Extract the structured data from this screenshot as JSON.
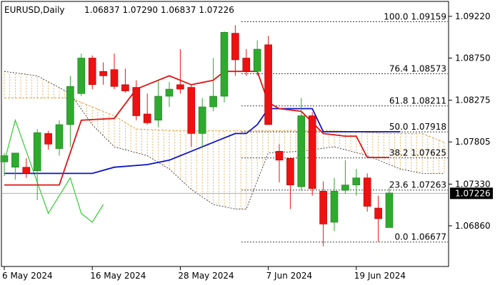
{
  "header": {
    "symbol": "EURUSD,Daily",
    "ohlc": "1.06837 1.07290 1.06837 1.07226"
  },
  "colors": {
    "bull": "#2eaa2e",
    "bear": "#ee1111",
    "kijun": "#0a14c8",
    "tenkan": "#e01414",
    "chikou": "#33cc33",
    "cloud": "#e0a040",
    "cloud_edge": "#202020",
    "fib": "#404040",
    "price_tag_bg": "#000000",
    "price_tag_fg": "#ffffff",
    "current_line": "#b0b0b0"
  },
  "chart_data": {
    "type": "candlestick",
    "title": "EURUSD,Daily",
    "ylim": [
      1.0641,
      1.0938
    ],
    "y_ticks": [
      "1.09220",
      "1.08750",
      "1.08275",
      "1.07805",
      "1.07330",
      "1.06860"
    ],
    "y_tick_values": [
      1.0922,
      1.0875,
      1.08275,
      1.07805,
      1.0733,
      1.0686
    ],
    "x_ticks": [
      "6 May 2024",
      "16 May 2024",
      "28 May 2024",
      "7 Jun 2024",
      "19 Jun 2024"
    ],
    "x_tick_index": [
      0,
      8,
      16,
      24,
      32
    ],
    "current_price": "1.07226",
    "candles": [
      {
        "o": 1.0758,
        "h": 1.0768,
        "l": 1.0742,
        "c": 1.0765
      },
      {
        "o": 1.0752,
        "h": 1.0768,
        "l": 1.0738,
        "c": 1.0768
      },
      {
        "o": 1.0752,
        "h": 1.0762,
        "l": 1.074,
        "c": 1.0745
      },
      {
        "o": 1.0748,
        "h": 1.0795,
        "l": 1.0715,
        "c": 1.0791
      },
      {
        "o": 1.079,
        "h": 1.0793,
        "l": 1.0772,
        "c": 1.0778
      },
      {
        "o": 1.0773,
        "h": 1.0805,
        "l": 1.0765,
        "c": 1.08
      },
      {
        "o": 1.08,
        "h": 1.0855,
        "l": 1.0775,
        "c": 1.0843
      },
      {
        "o": 1.0835,
        "h": 1.088,
        "l": 1.0832,
        "c": 1.0875
      },
      {
        "o": 1.0875,
        "h": 1.0878,
        "l": 1.084,
        "c": 1.0845
      },
      {
        "o": 1.086,
        "h": 1.087,
        "l": 1.0845,
        "c": 1.0855
      },
      {
        "o": 1.0862,
        "h": 1.088,
        "l": 1.084,
        "c": 1.0843
      },
      {
        "o": 1.0845,
        "h": 1.0863,
        "l": 1.0836,
        "c": 1.0838
      },
      {
        "o": 1.0842,
        "h": 1.085,
        "l": 1.0805,
        "c": 1.081
      },
      {
        "o": 1.0812,
        "h": 1.0835,
        "l": 1.08,
        "c": 1.0802
      },
      {
        "o": 1.0805,
        "h": 1.085,
        "l": 1.0797,
        "c": 1.0832
      },
      {
        "o": 1.0832,
        "h": 1.0848,
        "l": 1.082,
        "c": 1.084
      },
      {
        "o": 1.0845,
        "h": 1.0885,
        "l": 1.0835,
        "c": 1.084
      },
      {
        "o": 1.0842,
        "h": 1.0845,
        "l": 1.0775,
        "c": 1.079
      },
      {
        "o": 1.079,
        "h": 1.083,
        "l": 1.0775,
        "c": 1.082
      },
      {
        "o": 1.082,
        "h": 1.0875,
        "l": 1.0815,
        "c": 1.0832
      },
      {
        "o": 1.0832,
        "h": 1.0905,
        "l": 1.0825,
        "c": 1.0904
      },
      {
        "o": 1.0903,
        "h": 1.0912,
        "l": 1.0855,
        "c": 1.0873
      },
      {
        "o": 1.0875,
        "h": 1.0885,
        "l": 1.0855,
        "c": 1.086
      },
      {
        "o": 1.086,
        "h": 1.0895,
        "l": 1.0855,
        "c": 1.0885
      },
      {
        "o": 1.089,
        "h": 1.09,
        "l": 1.08,
        "c": 1.08
      },
      {
        "o": 1.077,
        "h": 1.0778,
        "l": 1.0735,
        "c": 1.076
      },
      {
        "o": 1.0762,
        "h": 1.0763,
        "l": 1.0705,
        "c": 1.0732
      },
      {
        "o": 1.073,
        "h": 1.083,
        "l": 1.0726,
        "c": 1.081
      },
      {
        "o": 1.081,
        "h": 1.0814,
        "l": 1.072,
        "c": 1.0728
      },
      {
        "o": 1.0725,
        "h": 1.0736,
        "l": 1.0663,
        "c": 1.0688
      },
      {
        "o": 1.069,
        "h": 1.074,
        "l": 1.068,
        "c": 1.0725
      },
      {
        "o": 1.0726,
        "h": 1.076,
        "l": 1.0722,
        "c": 1.0732
      },
      {
        "o": 1.0732,
        "h": 1.075,
        "l": 1.072,
        "c": 1.074
      },
      {
        "o": 1.074,
        "h": 1.0745,
        "l": 1.0702,
        "c": 1.0708
      },
      {
        "o": 1.0706,
        "h": 1.072,
        "l": 1.0668,
        "c": 1.0694
      },
      {
        "o": 1.0684,
        "h": 1.0729,
        "l": 1.0684,
        "c": 1.0723
      }
    ],
    "kijun": [
      [
        0,
        1.0745
      ],
      [
        8,
        1.0745
      ],
      [
        10,
        1.0752
      ],
      [
        13,
        1.0755
      ],
      [
        15,
        1.076
      ],
      [
        18,
        1.0775
      ],
      [
        20,
        1.0785
      ],
      [
        21,
        1.079
      ],
      [
        22,
        1.079
      ],
      [
        23,
        1.08
      ],
      [
        24,
        1.0818
      ],
      [
        28,
        1.0818
      ],
      [
        29,
        1.0792
      ],
      [
        36,
        1.0792
      ]
    ],
    "tenkan": [
      [
        0,
        1.0732
      ],
      [
        5,
        1.0732
      ],
      [
        7,
        1.0805
      ],
      [
        10,
        1.0807
      ],
      [
        12,
        1.084
      ],
      [
        15,
        1.0855
      ],
      [
        17,
        1.0845
      ],
      [
        19,
        1.085
      ],
      [
        20,
        1.086
      ],
      [
        23,
        1.086
      ],
      [
        24,
        1.0825
      ],
      [
        25,
        1.0818
      ],
      [
        27,
        1.0815
      ],
      [
        29,
        1.079
      ],
      [
        31,
        1.0787
      ],
      [
        32,
        1.0787
      ],
      [
        33,
        1.0763
      ],
      [
        35,
        1.0763
      ]
    ],
    "chikou": [
      [
        0,
        1.0758
      ],
      [
        1,
        1.0805
      ],
      [
        3,
        1.0735
      ],
      [
        4,
        1.07
      ],
      [
        6,
        1.074
      ],
      [
        7,
        1.07
      ],
      [
        8,
        1.069
      ],
      [
        9,
        1.071
      ]
    ],
    "cloud_top": [
      [
        0,
        1.083
      ],
      [
        6,
        1.083
      ],
      [
        10,
        1.081
      ],
      [
        12,
        1.0795
      ],
      [
        16,
        1.0793
      ],
      [
        23,
        1.0793
      ],
      [
        30,
        1.0793
      ],
      [
        35,
        1.079
      ],
      [
        38,
        1.079
      ],
      [
        40,
        1.078
      ]
    ],
    "cloud_bottom": [
      [
        0,
        1.086
      ],
      [
        3,
        1.0855
      ],
      [
        6,
        1.0835
      ],
      [
        8,
        1.08
      ],
      [
        10,
        1.0775
      ],
      [
        13,
        1.0765
      ],
      [
        15,
        1.075
      ],
      [
        17,
        1.0727
      ],
      [
        19,
        1.071
      ],
      [
        21,
        1.0705
      ],
      [
        22,
        1.0705
      ],
      [
        24,
        1.0768
      ],
      [
        27,
        1.077
      ],
      [
        30,
        1.0775
      ],
      [
        33,
        1.0765
      ],
      [
        36,
        1.075
      ],
      [
        38,
        1.0745
      ],
      [
        40,
        1.0745
      ]
    ],
    "fib_levels": [
      {
        "label": "100.0 1.09159",
        "value": 1.09159
      },
      {
        "label": "76.4 1.08573",
        "value": 1.08573
      },
      {
        "label": "61.8 1.08211",
        "value": 1.08211
      },
      {
        "label": "50.0 1.07918",
        "value": 1.07918
      },
      {
        "label": "38.2 1.07625",
        "value": 1.07625
      },
      {
        "label": "23.6 1.07263",
        "value": 1.07263
      },
      {
        "label": "0.0 1.06677",
        "value": 1.06677
      }
    ]
  }
}
